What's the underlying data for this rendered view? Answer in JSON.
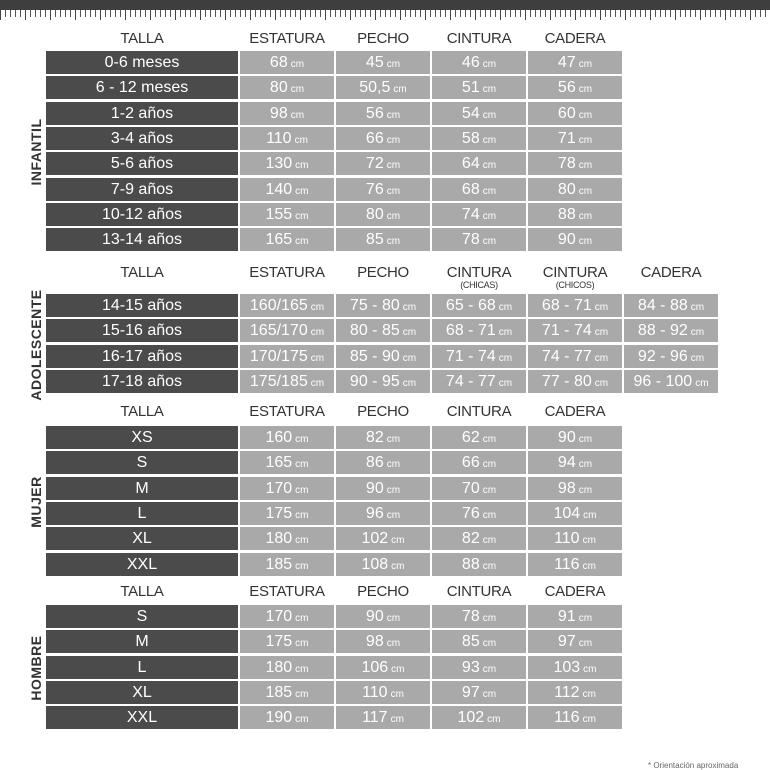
{
  "unit": "cm",
  "footnote": "* Orientación aproximada",
  "sections": [
    {
      "name": "INFANTIL",
      "headers": [
        {
          "t": "TALLA"
        },
        {
          "t": "ESTATURA"
        },
        {
          "t": "PECHO"
        },
        {
          "t": "CINTURA"
        },
        {
          "t": "CADERA"
        }
      ],
      "rows": [
        [
          "0-6 meses",
          "68",
          "45",
          "46",
          "47"
        ],
        [
          "6 - 12 meses",
          "80",
          "50,5",
          "51",
          "56"
        ],
        [
          "1-2 años",
          "98",
          "56",
          "54",
          "60"
        ],
        [
          "3-4 años",
          "110",
          "66",
          "58",
          "71"
        ],
        [
          "5-6 años",
          "130",
          "72",
          "64",
          "78"
        ],
        [
          "7-9 años",
          "140",
          "76",
          "68",
          "80"
        ],
        [
          "10-12 años",
          "155",
          "80",
          "74",
          "88"
        ],
        [
          "13-14 años",
          "165",
          "85",
          "78",
          "90"
        ]
      ]
    },
    {
      "name": "ADOLESCENTE",
      "headers": [
        {
          "t": "TALLA"
        },
        {
          "t": "ESTATURA"
        },
        {
          "t": "PECHO"
        },
        {
          "t": "CINTURA",
          "s": "(CHICAS)"
        },
        {
          "t": "CINTURA",
          "s": "(CHICOS)"
        },
        {
          "t": "CADERA"
        }
      ],
      "rows": [
        [
          "14-15 años",
          "160/165",
          "75 - 80",
          "65 - 68",
          "68 - 71",
          "84 - 88"
        ],
        [
          "15-16 años",
          "165/170",
          "80 - 85",
          "68 - 71",
          "71 - 74",
          "88 - 92"
        ],
        [
          "16-17 años",
          "170/175",
          "85 - 90",
          "71 - 74",
          "74 - 77",
          "92 - 96"
        ],
        [
          "17-18 años",
          "175/185",
          "90 - 95",
          "74 - 77",
          "77 - 80",
          "96 - 100"
        ]
      ]
    },
    {
      "name": "MUJER",
      "headers": [
        {
          "t": "TALLA"
        },
        {
          "t": "ESTATURA"
        },
        {
          "t": "PECHO"
        },
        {
          "t": "CINTURA"
        },
        {
          "t": "CADERA"
        }
      ],
      "rows": [
        [
          "XS",
          "160",
          "82",
          "62",
          "90"
        ],
        [
          "S",
          "165",
          "86",
          "66",
          "94"
        ],
        [
          "M",
          "170",
          "90",
          "70",
          "98"
        ],
        [
          "L",
          "175",
          "96",
          "76",
          "104"
        ],
        [
          "XL",
          "180",
          "102",
          "82",
          "110"
        ],
        [
          "XXL",
          "185",
          "108",
          "88",
          "116"
        ]
      ]
    },
    {
      "name": "HOMBRE",
      "headers": [
        {
          "t": "TALLA"
        },
        {
          "t": "ESTATURA"
        },
        {
          "t": "PECHO"
        },
        {
          "t": "CINTURA"
        },
        {
          "t": "CADERA"
        }
      ],
      "rows": [
        [
          "S",
          "170",
          "90",
          "78",
          "91"
        ],
        [
          "M",
          "175",
          "98",
          "85",
          "97"
        ],
        [
          "L",
          "180",
          "106",
          "93",
          "103"
        ],
        [
          "XL",
          "185",
          "110",
          "97",
          "112"
        ],
        [
          "XXL",
          "190",
          "117",
          "102",
          "116"
        ]
      ]
    }
  ]
}
